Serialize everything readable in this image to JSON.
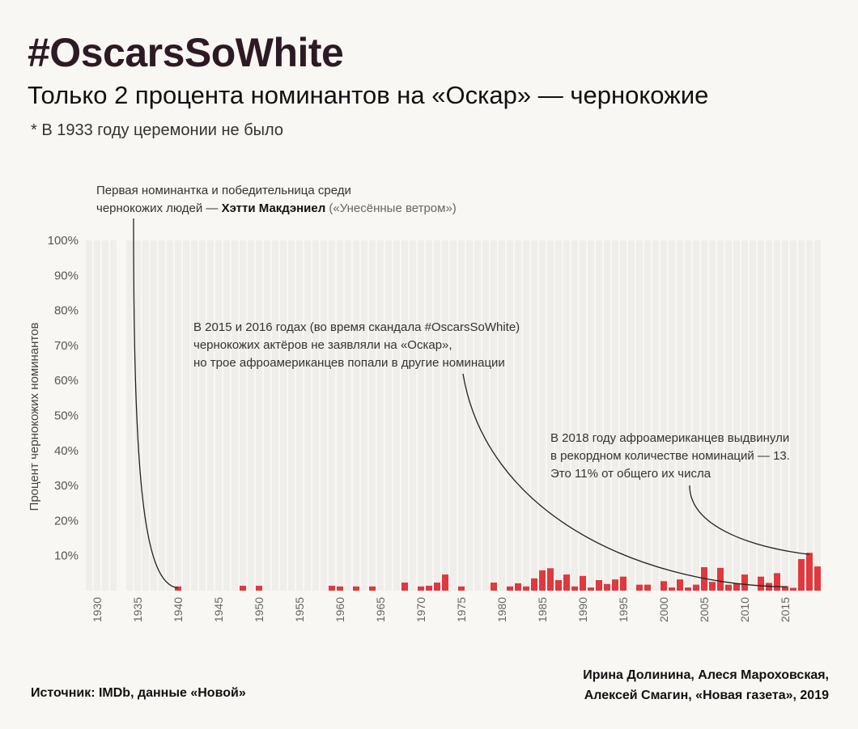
{
  "header": {
    "title": "#OscarsSoWhite",
    "subtitle": "Только 2 процента номинантов на «Оскар» — чернокожие",
    "note": "* В 1933 году церемонии не было"
  },
  "footer": {
    "source": "Источник: IMDb, данные «Новой»",
    "authors_line1": "Ирина Долинина, Алеся Мароховская,",
    "authors_line2": "Алексей Смагин, «Новая газета», 2019"
  },
  "colors": {
    "bar": "#e0383e",
    "background_bar": "#efeeea",
    "title": "#2d1a24"
  },
  "chart_data": {
    "type": "bar",
    "title": "#OscarsSoWhite",
    "xlabel": "",
    "ylabel": "Процент чернокожих номинантов",
    "ylim": [
      0,
      100
    ],
    "yticks": [
      10,
      20,
      30,
      40,
      50,
      60,
      70,
      80,
      90,
      100
    ],
    "ytick_labels": [
      "10%",
      "20%",
      "30%",
      "40%",
      "50%",
      "60%",
      "70%",
      "80%",
      "90%",
      "100%"
    ],
    "xlim": [
      1929,
      2019
    ],
    "missing_years": [
      1933
    ],
    "xticks": [
      1930,
      1935,
      1940,
      1945,
      1950,
      1955,
      1960,
      1965,
      1970,
      1975,
      1980,
      1985,
      1990,
      1995,
      2000,
      2005,
      2010,
      2015
    ],
    "x": [
      1940,
      1948,
      1950,
      1959,
      1960,
      1962,
      1964,
      1968,
      1970,
      1971,
      1972,
      1973,
      1975,
      1979,
      1981,
      1982,
      1983,
      1984,
      1985,
      1986,
      1987,
      1988,
      1989,
      1990,
      1991,
      1992,
      1993,
      1994,
      1995,
      1997,
      1998,
      2000,
      2001,
      2002,
      2003,
      2004,
      2005,
      2006,
      2007,
      2008,
      2009,
      2010,
      2012,
      2013,
      2014,
      2015,
      2016,
      2017,
      2018,
      2019
    ],
    "values": [
      1.2,
      1.4,
      1.4,
      1.4,
      1.2,
      1.2,
      1.2,
      2.3,
      1.2,
      1.4,
      2.3,
      4.6,
      1.2,
      2.3,
      1.2,
      2.1,
      1.2,
      3.5,
      5.8,
      6.4,
      3.0,
      4.6,
      1.2,
      4.2,
      0.9,
      3.0,
      1.9,
      3.2,
      4.0,
      1.7,
      1.7,
      2.7,
      0.9,
      3.2,
      0.9,
      1.7,
      6.7,
      2.5,
      6.5,
      1.7,
      2.1,
      4.6,
      4.0,
      2.2,
      5.0,
      1.3,
      0.8,
      9.0,
      10.8,
      6.9
    ],
    "annotations": [
      {
        "lines": [
          "Первая номинантка и победительница среди",
          "чернокожих людей — ",
          "Хэтти Макдэниел",
          " («Унесённые ветром»)"
        ],
        "year": 1940
      },
      {
        "lines": [
          "В 2015 и 2016 годах (во время скандала #OscarsSoWhite)",
          "чернокожих актёров не заявляли на «Оскар»,",
          "но трое афроамериканцев попали в другие номинации"
        ],
        "year": 2015
      },
      {
        "lines": [
          "В 2018 году афроамериканцев выдвинули",
          "в рекордном количестве номинаций — 13.",
          "Это 11% от общего их числа"
        ],
        "year": 2018
      }
    ]
  }
}
